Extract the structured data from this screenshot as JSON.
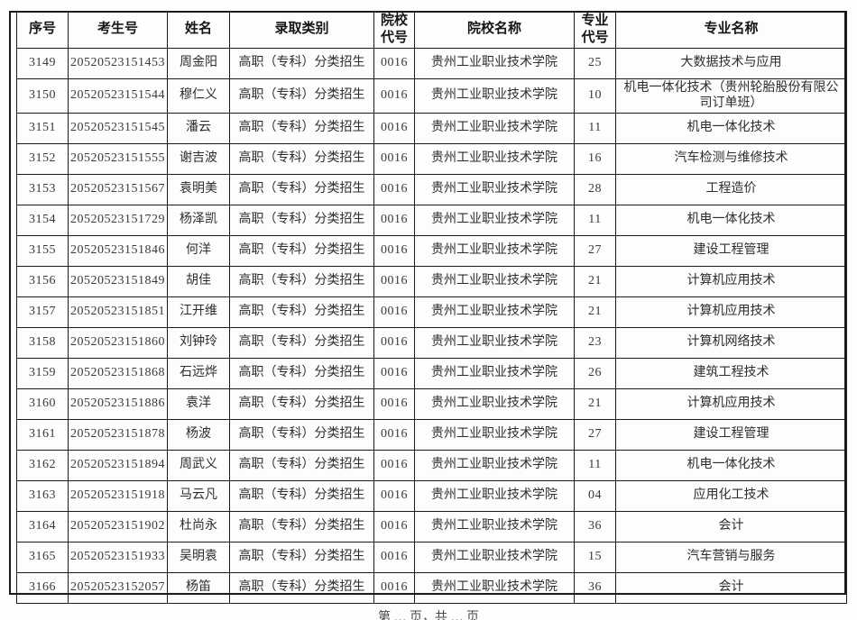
{
  "table": {
    "columns": [
      {
        "key": "serial",
        "label": "序号"
      },
      {
        "key": "candidate_no",
        "label": "考生号"
      },
      {
        "key": "name",
        "label": "姓名"
      },
      {
        "key": "admission_type",
        "label": "录取类别"
      },
      {
        "key": "college_code",
        "label": "院校代号"
      },
      {
        "key": "college_name",
        "label": "院校名称"
      },
      {
        "key": "major_code",
        "label": "专业代号"
      },
      {
        "key": "major_name",
        "label": "专业名称"
      }
    ],
    "rows": [
      [
        "3149",
        "20520523151453",
        "周金阳",
        "高职（专科）分类招生",
        "0016",
        "贵州工业职业技术学院",
        "25",
        "大数据技术与应用"
      ],
      [
        "3150",
        "20520523151544",
        "穆仁义",
        "高职（专科）分类招生",
        "0016",
        "贵州工业职业技术学院",
        "10",
        "机电一体化技术（贵州轮胎股份有限公司订单班）"
      ],
      [
        "3151",
        "20520523151545",
        "潘云",
        "高职（专科）分类招生",
        "0016",
        "贵州工业职业技术学院",
        "11",
        "机电一体化技术"
      ],
      [
        "3152",
        "20520523151555",
        "谢吉波",
        "高职（专科）分类招生",
        "0016",
        "贵州工业职业技术学院",
        "16",
        "汽车检测与维修技术"
      ],
      [
        "3153",
        "20520523151567",
        "袁明美",
        "高职（专科）分类招生",
        "0016",
        "贵州工业职业技术学院",
        "28",
        "工程造价"
      ],
      [
        "3154",
        "20520523151729",
        "杨泽凯",
        "高职（专科）分类招生",
        "0016",
        "贵州工业职业技术学院",
        "11",
        "机电一体化技术"
      ],
      [
        "3155",
        "20520523151846",
        "何洋",
        "高职（专科）分类招生",
        "0016",
        "贵州工业职业技术学院",
        "27",
        "建设工程管理"
      ],
      [
        "3156",
        "20520523151849",
        "胡佳",
        "高职（专科）分类招生",
        "0016",
        "贵州工业职业技术学院",
        "21",
        "计算机应用技术"
      ],
      [
        "3157",
        "20520523151851",
        "江开维",
        "高职（专科）分类招生",
        "0016",
        "贵州工业职业技术学院",
        "21",
        "计算机应用技术"
      ],
      [
        "3158",
        "20520523151860",
        "刘钟玲",
        "高职（专科）分类招生",
        "0016",
        "贵州工业职业技术学院",
        "23",
        "计算机网络技术"
      ],
      [
        "3159",
        "20520523151868",
        "石远烨",
        "高职（专科）分类招生",
        "0016",
        "贵州工业职业技术学院",
        "26",
        "建筑工程技术"
      ],
      [
        "3160",
        "20520523151886",
        "袁洋",
        "高职（专科）分类招生",
        "0016",
        "贵州工业职业技术学院",
        "21",
        "计算机应用技术"
      ],
      [
        "3161",
        "20520523151878",
        "杨波",
        "高职（专科）分类招生",
        "0016",
        "贵州工业职业技术学院",
        "27",
        "建设工程管理"
      ],
      [
        "3162",
        "20520523151894",
        "周武义",
        "高职（专科）分类招生",
        "0016",
        "贵州工业职业技术学院",
        "11",
        "机电一体化技术"
      ],
      [
        "3163",
        "20520523151918",
        "马云凡",
        "高职（专科）分类招生",
        "0016",
        "贵州工业职业技术学院",
        "04",
        "应用化工技术"
      ],
      [
        "3164",
        "20520523151902",
        "杜尚永",
        "高职（专科）分类招生",
        "0016",
        "贵州工业职业技术学院",
        "36",
        "会计"
      ],
      [
        "3165",
        "20520523151933",
        "吴明袁",
        "高职（专科）分类招生",
        "0016",
        "贵州工业职业技术学院",
        "15",
        "汽车营销与服务"
      ],
      [
        "3166",
        "20520523152057",
        "杨笛",
        "高职（专科）分类招生",
        "0016",
        "贵州工业职业技术学院",
        "36",
        "会计"
      ]
    ]
  },
  "footer": {
    "page_text": "第 … 页，共 … 页"
  },
  "colors": {
    "border": "#1b1b1b",
    "text": "#2d2d2d",
    "background": "#fdfdfd"
  }
}
